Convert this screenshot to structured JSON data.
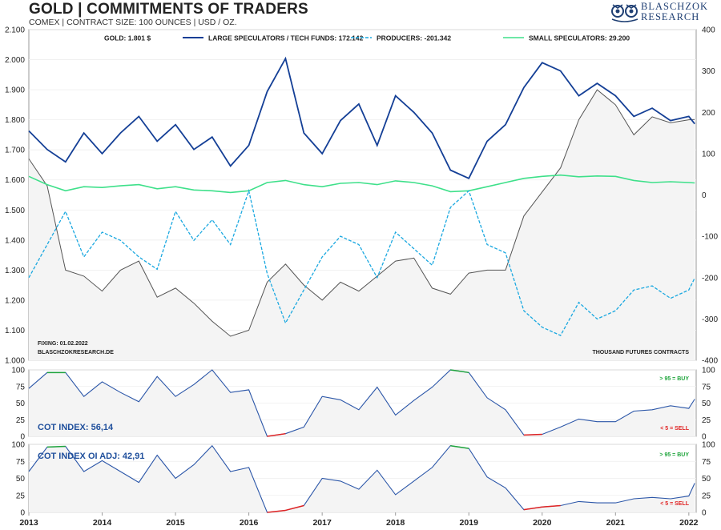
{
  "header": {
    "title": "GOLD | COMMITMENTS OF TRADERS",
    "subtitle": "COMEX | CONTRACT SIZE: 100 OUNCES | USD / OZ.",
    "logo_line1": "BLASCHZOK",
    "logo_line2": "RESEARCH"
  },
  "colors": {
    "gold": "#555555",
    "large_specs": "#143f96",
    "producers": "#1aa8e0",
    "small_specs": "#3ee08a",
    "cot_line": "#2b56a8",
    "buy": "#1fa53c",
    "sell": "#e02424",
    "fill": "#f4f4f4"
  },
  "main_panel": {
    "fixing": "FIXING: 01.02.2022",
    "source": "BLASCHZOKRESEARCH.DE",
    "right_axis_label": "THOUSAND FUTURES CONTRACTS"
  },
  "panel2": {
    "label": "COT INDEX: 56,14",
    "buy_label": "> 95 = BUY",
    "sell_label": "< 5 = SELL"
  },
  "panel3": {
    "label": "COT INDEX OI ADJ: 42,91",
    "buy_label": "> 95 = BUY",
    "sell_label": "< 5 = SELL"
  },
  "chart_data": [
    {
      "type": "line",
      "title": "GOLD | COMMITMENTS OF TRADERS",
      "x_ticks": [
        "2013",
        "2014",
        "2015",
        "2016",
        "2017",
        "2018",
        "2019",
        "2020",
        "2021",
        "2022"
      ],
      "left_axis": {
        "ylim": [
          1000,
          2100
        ],
        "ticks": [
          "1.000",
          "1.100",
          "1.200",
          "1.300",
          "1.400",
          "1.500",
          "1.600",
          "1.700",
          "1.800",
          "1.900",
          "2.000",
          "2.100"
        ]
      },
      "right_axis": {
        "ylim": [
          -400,
          400
        ],
        "ticks": [
          "-400",
          "-300",
          "-200",
          "-100",
          "0",
          "100",
          "200",
          "300",
          "400"
        ]
      },
      "legend": [
        "GOLD: 1.801 $",
        "LARGE SPECULATORS / TECH FUNDS: 172.142",
        "PRODUCERS: -201.342",
        "SMALL SPECULATORS: 29.200"
      ],
      "x": [
        2013.0,
        2013.25,
        2013.5,
        2013.75,
        2014.0,
        2014.25,
        2014.5,
        2014.75,
        2015.0,
        2015.25,
        2015.5,
        2015.75,
        2016.0,
        2016.25,
        2016.5,
        2016.75,
        2017.0,
        2017.25,
        2017.5,
        2017.75,
        2018.0,
        2018.25,
        2018.5,
        2018.75,
        2019.0,
        2019.25,
        2019.5,
        2019.75,
        2020.0,
        2020.25,
        2020.5,
        2020.75,
        2021.0,
        2021.25,
        2021.5,
        2021.75,
        2022.0,
        2022.08
      ],
      "series": [
        {
          "name": "GOLD",
          "axis": "left",
          "values": [
            1670,
            1580,
            1300,
            1280,
            1230,
            1300,
            1330,
            1210,
            1240,
            1190,
            1130,
            1080,
            1100,
            1260,
            1320,
            1250,
            1200,
            1260,
            1230,
            1280,
            1330,
            1340,
            1240,
            1220,
            1290,
            1300,
            1300,
            1480,
            1560,
            1640,
            1800,
            1900,
            1850,
            1750,
            1810,
            1790,
            1800,
            1801
          ]
        },
        {
          "name": "LARGE SPECULATORS / TECH FUNDS",
          "axis": "right",
          "values": [
            155,
            110,
            80,
            150,
            100,
            150,
            190,
            130,
            170,
            110,
            140,
            70,
            120,
            250,
            330,
            150,
            100,
            180,
            220,
            120,
            240,
            200,
            150,
            60,
            40,
            130,
            170,
            260,
            320,
            300,
            240,
            270,
            240,
            190,
            210,
            180,
            190,
            172
          ]
        },
        {
          "name": "PRODUCERS",
          "axis": "right",
          "values": [
            -200,
            -120,
            -40,
            -150,
            -90,
            -110,
            -150,
            -180,
            -40,
            -110,
            -60,
            -120,
            10,
            -190,
            -310,
            -230,
            -150,
            -100,
            -120,
            -200,
            -90,
            -130,
            -170,
            -30,
            10,
            -120,
            -140,
            -280,
            -320,
            -340,
            -260,
            -300,
            -280,
            -230,
            -220,
            -250,
            -230,
            -201
          ]
        },
        {
          "name": "SMALL SPECULATORS",
          "axis": "right",
          "values": [
            45,
            25,
            10,
            20,
            18,
            22,
            25,
            15,
            20,
            12,
            10,
            6,
            10,
            30,
            35,
            25,
            20,
            28,
            30,
            25,
            34,
            30,
            22,
            8,
            10,
            20,
            30,
            40,
            45,
            48,
            44,
            46,
            45,
            35,
            30,
            32,
            30,
            29
          ]
        }
      ]
    },
    {
      "type": "line",
      "title": "COT INDEX: 56,14",
      "ylim": [
        0,
        100
      ],
      "yticks": [
        "0",
        "25",
        "50",
        "75",
        "100"
      ],
      "thresholds": {
        "buy": 95,
        "sell": 5
      },
      "x": [
        2013.0,
        2013.25,
        2013.5,
        2013.75,
        2014.0,
        2014.25,
        2014.5,
        2014.75,
        2015.0,
        2015.25,
        2015.5,
        2015.75,
        2016.0,
        2016.25,
        2016.5,
        2016.75,
        2017.0,
        2017.25,
        2017.5,
        2017.75,
        2018.0,
        2018.25,
        2018.5,
        2018.75,
        2019.0,
        2019.25,
        2019.5,
        2019.75,
        2020.0,
        2020.25,
        2020.5,
        2020.75,
        2021.0,
        2021.25,
        2021.5,
        2021.75,
        2022.0,
        2022.08
      ],
      "values": [
        72,
        96,
        96,
        60,
        82,
        66,
        52,
        90,
        60,
        78,
        100,
        66,
        70,
        0,
        4,
        14,
        60,
        55,
        40,
        74,
        32,
        54,
        74,
        100,
        96,
        58,
        40,
        2,
        3,
        14,
        26,
        22,
        22,
        38,
        40,
        46,
        42,
        56
      ]
    },
    {
      "type": "line",
      "title": "COT INDEX OI ADJ: 42,91",
      "ylim": [
        0,
        100
      ],
      "yticks": [
        "0",
        "25",
        "50",
        "75",
        "100"
      ],
      "thresholds": {
        "buy": 95,
        "sell": 5
      },
      "x": [
        2013.0,
        2013.25,
        2013.5,
        2013.75,
        2014.0,
        2014.25,
        2014.5,
        2014.75,
        2015.0,
        2015.25,
        2015.5,
        2015.75,
        2016.0,
        2016.25,
        2016.5,
        2016.75,
        2017.0,
        2017.25,
        2017.5,
        2017.75,
        2018.0,
        2018.25,
        2018.5,
        2018.75,
        2019.0,
        2019.25,
        2019.5,
        2019.75,
        2020.0,
        2020.25,
        2020.5,
        2020.75,
        2021.0,
        2021.25,
        2021.5,
        2021.75,
        2022.0,
        2022.08
      ],
      "values": [
        60,
        96,
        97,
        60,
        76,
        60,
        44,
        84,
        50,
        70,
        98,
        60,
        66,
        0,
        3,
        10,
        50,
        46,
        34,
        62,
        26,
        46,
        66,
        98,
        94,
        52,
        36,
        4,
        8,
        10,
        16,
        14,
        14,
        20,
        22,
        20,
        24,
        43
      ]
    }
  ]
}
